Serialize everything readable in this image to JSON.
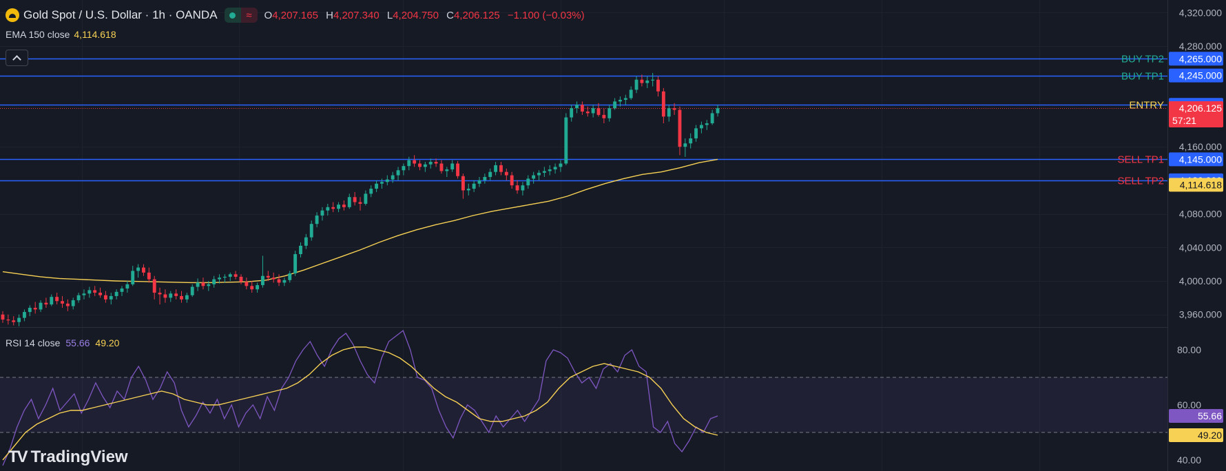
{
  "header": {
    "title": "Gold Spot / U.S. Dollar · 1h · OANDA",
    "open_label": "O",
    "open": "4,207.165",
    "high_label": "H",
    "high": "4,207.340",
    "low_label": "L",
    "low": "4,204.750",
    "close_label": "C",
    "close": "4,206.125",
    "change": "−1.100 (−0.03%)",
    "wave_glyph": "≈"
  },
  "ema_indicator": {
    "label": "EMA 150 close",
    "value": "4,114.618"
  },
  "rsi_indicator": {
    "label": "RSI 14 close",
    "value": "55.66",
    "ma_value": "49.20"
  },
  "watermark": {
    "mark": "TV",
    "text": "TradingView"
  },
  "colors": {
    "background": "#161a25",
    "up": "#22ab94",
    "down": "#f23645",
    "ema": "#f7d154",
    "rsi": "#7e57c2",
    "rsi_ma": "#f7d154",
    "level_line": "#2962ff",
    "grid": "#1e222d"
  },
  "chart_data": [
    {
      "type": "candlestick",
      "symbol": "Gold Spot / U.S. Dollar",
      "timeframe": "1h",
      "price_axis_ticks": [
        "4,320.000",
        "4,280.000",
        "4,160.000",
        "4,080.000",
        "4,040.000",
        "4,000.000",
        "3,960.000"
      ],
      "ylim": [
        3945,
        4335
      ],
      "price_levels": [
        {
          "label": "BUY TP2",
          "price": 4265.0,
          "price_label": "4,265.000",
          "color": "#22ab94"
        },
        {
          "label": "BUY TP1",
          "price": 4245.0,
          "price_label": "4,245.000",
          "color": "#22ab94"
        },
        {
          "label": "",
          "price": 4210.0,
          "price_label": "4,210.000",
          "color": "#2962ff"
        },
        {
          "label": "ENTRY",
          "price": 4210.0,
          "price_label": "",
          "color": "#f7d154"
        },
        {
          "label": "SELL TP1",
          "price": 4145.0,
          "price_label": "4,145.000",
          "color": "#f23645"
        },
        {
          "label": "SELL TP2",
          "price": 4120.0,
          "price_label": "4,120.000",
          "color": "#f23645"
        }
      ],
      "current_price": {
        "price": 4206.125,
        "label": "4,206.125",
        "countdown": "57:21"
      },
      "ema": {
        "name": "EMA 150",
        "last_label": "4,114.618",
        "last": 4114.6,
        "values": [
          4011,
          4008,
          4005,
          4003,
          4002,
          4001,
          4000,
          3999.5,
          3999,
          3998.5,
          3998,
          3998,
          3998.5,
          3999,
          4001,
          4006,
          4013,
          4021,
          4029,
          4037,
          4046,
          4054,
          4061,
          4067,
          4072,
          4078,
          4083,
          4087,
          4091,
          4095,
          4101,
          4109,
          4116,
          4122,
          4127,
          4130,
          4135,
          4141,
          4145
        ]
      },
      "ohlc": [
        [
          3960,
          3964,
          3950,
          3954
        ],
        [
          3954,
          3960,
          3948,
          3953
        ],
        [
          3953,
          3958,
          3947,
          3951
        ],
        [
          3951,
          3960,
          3946,
          3956
        ],
        [
          3956,
          3966,
          3952,
          3963
        ],
        [
          3963,
          3971,
          3958,
          3968
        ],
        [
          3968,
          3975,
          3961,
          3966
        ],
        [
          3966,
          3977,
          3963,
          3974
        ],
        [
          3974,
          3980,
          3968,
          3972
        ],
        [
          3972,
          3984,
          3970,
          3981
        ],
        [
          3981,
          3986,
          3972,
          3976
        ],
        [
          3976,
          3982,
          3968,
          3973
        ],
        [
          3973,
          3978,
          3964,
          3970
        ],
        [
          3970,
          3980,
          3966,
          3977
        ],
        [
          3977,
          3986,
          3974,
          3983
        ],
        [
          3983,
          3990,
          3978,
          3985
        ],
        [
          3985,
          3993,
          3980,
          3989
        ],
        [
          3989,
          3994,
          3982,
          3986
        ],
        [
          3986,
          3992,
          3980,
          3983
        ],
        [
          3983,
          3988,
          3974,
          3978
        ],
        [
          3978,
          3986,
          3972,
          3982
        ],
        [
          3982,
          3990,
          3978,
          3987
        ],
        [
          3987,
          3994,
          3982,
          3991
        ],
        [
          3991,
          4000,
          3986,
          3996
        ],
        [
          3996,
          4018,
          3994,
          4012
        ],
        [
          4012,
          4020,
          4004,
          4016
        ],
        [
          4016,
          4020,
          4006,
          4010
        ],
        [
          4010,
          4016,
          3998,
          4002
        ],
        [
          4002,
          4006,
          3978,
          3986
        ],
        [
          3986,
          3992,
          3972,
          3984
        ],
        [
          3984,
          3990,
          3974,
          3980
        ],
        [
          3980,
          3988,
          3975,
          3985
        ],
        [
          3985,
          3990,
          3978,
          3982
        ],
        [
          3982,
          3988,
          3974,
          3978
        ],
        [
          3978,
          3986,
          3974,
          3983
        ],
        [
          3983,
          3996,
          3981,
          3993
        ],
        [
          3993,
          4003,
          3988,
          3998
        ],
        [
          3998,
          4004,
          3990,
          3994
        ],
        [
          3994,
          4000,
          3988,
          3996
        ],
        [
          3996,
          4006,
          3992,
          4002
        ],
        [
          4002,
          4008,
          3997,
          4004
        ],
        [
          4004,
          4008,
          3998,
          4005
        ],
        [
          4005,
          4010,
          4000,
          4008
        ],
        [
          4008,
          4012,
          4002,
          4005
        ],
        [
          4005,
          4008,
          3996,
          3999
        ],
        [
          3999,
          4004,
          3990,
          3994
        ],
        [
          3994,
          4000,
          3986,
          3990
        ],
        [
          3990,
          3998,
          3986,
          3995
        ],
        [
          3995,
          4030,
          3992,
          4006
        ],
        [
          4006,
          4012,
          4000,
          4004
        ],
        [
          4004,
          4010,
          3998,
          4002
        ],
        [
          4002,
          4008,
          3994,
          3998
        ],
        [
          3998,
          4004,
          3994,
          4001
        ],
        [
          4001,
          4012,
          3998,
          4009
        ],
        [
          4009,
          4036,
          4006,
          4032
        ],
        [
          4032,
          4046,
          4028,
          4042
        ],
        [
          4042,
          4056,
          4038,
          4052
        ],
        [
          4052,
          4072,
          4048,
          4068
        ],
        [
          4068,
          4082,
          4064,
          4078
        ],
        [
          4078,
          4088,
          4072,
          4084
        ],
        [
          4084,
          4092,
          4078,
          4088
        ],
        [
          4088,
          4094,
          4082,
          4086
        ],
        [
          4086,
          4094,
          4082,
          4091
        ],
        [
          4091,
          4096,
          4084,
          4088
        ],
        [
          4088,
          4104,
          4086,
          4100
        ],
        [
          4100,
          4106,
          4090,
          4094
        ],
        [
          4094,
          4100,
          4084,
          4092
        ],
        [
          4092,
          4108,
          4090,
          4104
        ],
        [
          4104,
          4114,
          4100,
          4110
        ],
        [
          4110,
          4120,
          4106,
          4116
        ],
        [
          4116,
          4122,
          4110,
          4118
        ],
        [
          4118,
          4126,
          4114,
          4121
        ],
        [
          4121,
          4130,
          4117,
          4126
        ],
        [
          4126,
          4136,
          4120,
          4132
        ],
        [
          4132,
          4140,
          4126,
          4137
        ],
        [
          4137,
          4148,
          4132,
          4144
        ],
        [
          4144,
          4150,
          4136,
          4140
        ],
        [
          4140,
          4144,
          4132,
          4136
        ],
        [
          4136,
          4142,
          4130,
          4139
        ],
        [
          4139,
          4146,
          4134,
          4142
        ],
        [
          4142,
          4146,
          4136,
          4140
        ],
        [
          4140,
          4144,
          4128,
          4131
        ],
        [
          4131,
          4136,
          4124,
          4133
        ],
        [
          4133,
          4144,
          4130,
          4140
        ],
        [
          4140,
          4143,
          4122,
          4125
        ],
        [
          4125,
          4128,
          4098,
          4108
        ],
        [
          4108,
          4116,
          4102,
          4110
        ],
        [
          4110,
          4120,
          4106,
          4116
        ],
        [
          4116,
          4124,
          4112,
          4120
        ],
        [
          4120,
          4128,
          4116,
          4124
        ],
        [
          4124,
          4134,
          4120,
          4130
        ],
        [
          4130,
          4142,
          4126,
          4138
        ],
        [
          4138,
          4142,
          4126,
          4130
        ],
        [
          4130,
          4134,
          4120,
          4126
        ],
        [
          4126,
          4130,
          4110,
          4114
        ],
        [
          4114,
          4120,
          4104,
          4108
        ],
        [
          4108,
          4118,
          4102,
          4114
        ],
        [
          4114,
          4126,
          4110,
          4122
        ],
        [
          4122,
          4130,
          4116,
          4126
        ],
        [
          4126,
          4132,
          4120,
          4129
        ],
        [
          4129,
          4136,
          4124,
          4131
        ],
        [
          4131,
          4138,
          4126,
          4133
        ],
        [
          4133,
          4140,
          4128,
          4136
        ],
        [
          4136,
          4144,
          4130,
          4140
        ],
        [
          4140,
          4200,
          4138,
          4195
        ],
        [
          4195,
          4210,
          4190,
          4206
        ],
        [
          4206,
          4214,
          4200,
          4210
        ],
        [
          4210,
          4214,
          4198,
          4202
        ],
        [
          4202,
          4208,
          4196,
          4200
        ],
        [
          4200,
          4210,
          4195,
          4206
        ],
        [
          4206,
          4212,
          4196,
          4198
        ],
        [
          4198,
          4206,
          4188,
          4194
        ],
        [
          4194,
          4210,
          4190,
          4206
        ],
        [
          4206,
          4218,
          4204,
          4214
        ],
        [
          4214,
          4220,
          4208,
          4216
        ],
        [
          4216,
          4222,
          4210,
          4218
        ],
        [
          4218,
          4232,
          4216,
          4228
        ],
        [
          4228,
          4244,
          4224,
          4240
        ],
        [
          4240,
          4246,
          4232,
          4236
        ],
        [
          4236,
          4244,
          4230,
          4239
        ],
        [
          4239,
          4248,
          4232,
          4240
        ],
        [
          4240,
          4244,
          4220,
          4226
        ],
        [
          4226,
          4230,
          4188,
          4196
        ],
        [
          4196,
          4210,
          4190,
          4206
        ],
        [
          4206,
          4212,
          4198,
          4204
        ],
        [
          4204,
          4208,
          4150,
          4160
        ],
        [
          4160,
          4170,
          4148,
          4164
        ],
        [
          4164,
          4176,
          4158,
          4170
        ],
        [
          4170,
          4186,
          4166,
          4182
        ],
        [
          4182,
          4190,
          4176,
          4186
        ],
        [
          4186,
          4192,
          4180,
          4188
        ],
        [
          4188,
          4204,
          4186,
          4200
        ],
        [
          4200,
          4210,
          4196,
          4206
        ]
      ]
    },
    {
      "type": "line",
      "name": "RSI 14",
      "y_ticks": [
        "80.00",
        "60.00",
        "40.00"
      ],
      "ylim": [
        36,
        88
      ],
      "bands": [
        70,
        50
      ],
      "series": [
        {
          "name": "RSI",
          "color": "#7e57c2",
          "last_label": "55.66",
          "values": [
            38,
            44,
            52,
            58,
            62,
            55,
            60,
            66,
            58,
            61,
            64,
            57,
            62,
            68,
            63,
            59,
            65,
            62,
            70,
            74,
            69,
            62,
            66,
            72,
            68,
            58,
            52,
            56,
            61,
            57,
            62,
            55,
            60,
            52,
            57,
            60,
            55,
            63,
            58,
            66,
            70,
            76,
            80,
            83,
            78,
            74,
            80,
            84,
            86,
            82,
            76,
            71,
            68,
            77,
            83,
            85,
            87,
            80,
            70,
            69,
            66,
            58,
            52,
            48,
            55,
            60,
            58,
            54,
            50,
            56,
            52,
            55,
            58,
            54,
            58,
            62,
            76,
            80,
            79,
            77,
            72,
            68,
            70,
            66,
            73,
            75,
            72,
            78,
            80,
            74,
            72,
            52,
            50,
            54,
            46,
            43,
            47,
            52,
            50,
            55,
            56
          ]
        },
        {
          "name": "RSI MA",
          "color": "#f7d154",
          "last_label": "49.20",
          "values": [
            40,
            45,
            50,
            53,
            55,
            57,
            58,
            58,
            59,
            60,
            61,
            62,
            63,
            64,
            65,
            64,
            62,
            61,
            60,
            60,
            61,
            62,
            63,
            64,
            65,
            66,
            68,
            71,
            75,
            78,
            80,
            81,
            81,
            80,
            79,
            77,
            74,
            70,
            66,
            63,
            61,
            58,
            55,
            54,
            54,
            55,
            56,
            58,
            61,
            66,
            70,
            72,
            74,
            75,
            74,
            73,
            72,
            70,
            66,
            60,
            55,
            52,
            50,
            49
          ]
        }
      ]
    }
  ]
}
